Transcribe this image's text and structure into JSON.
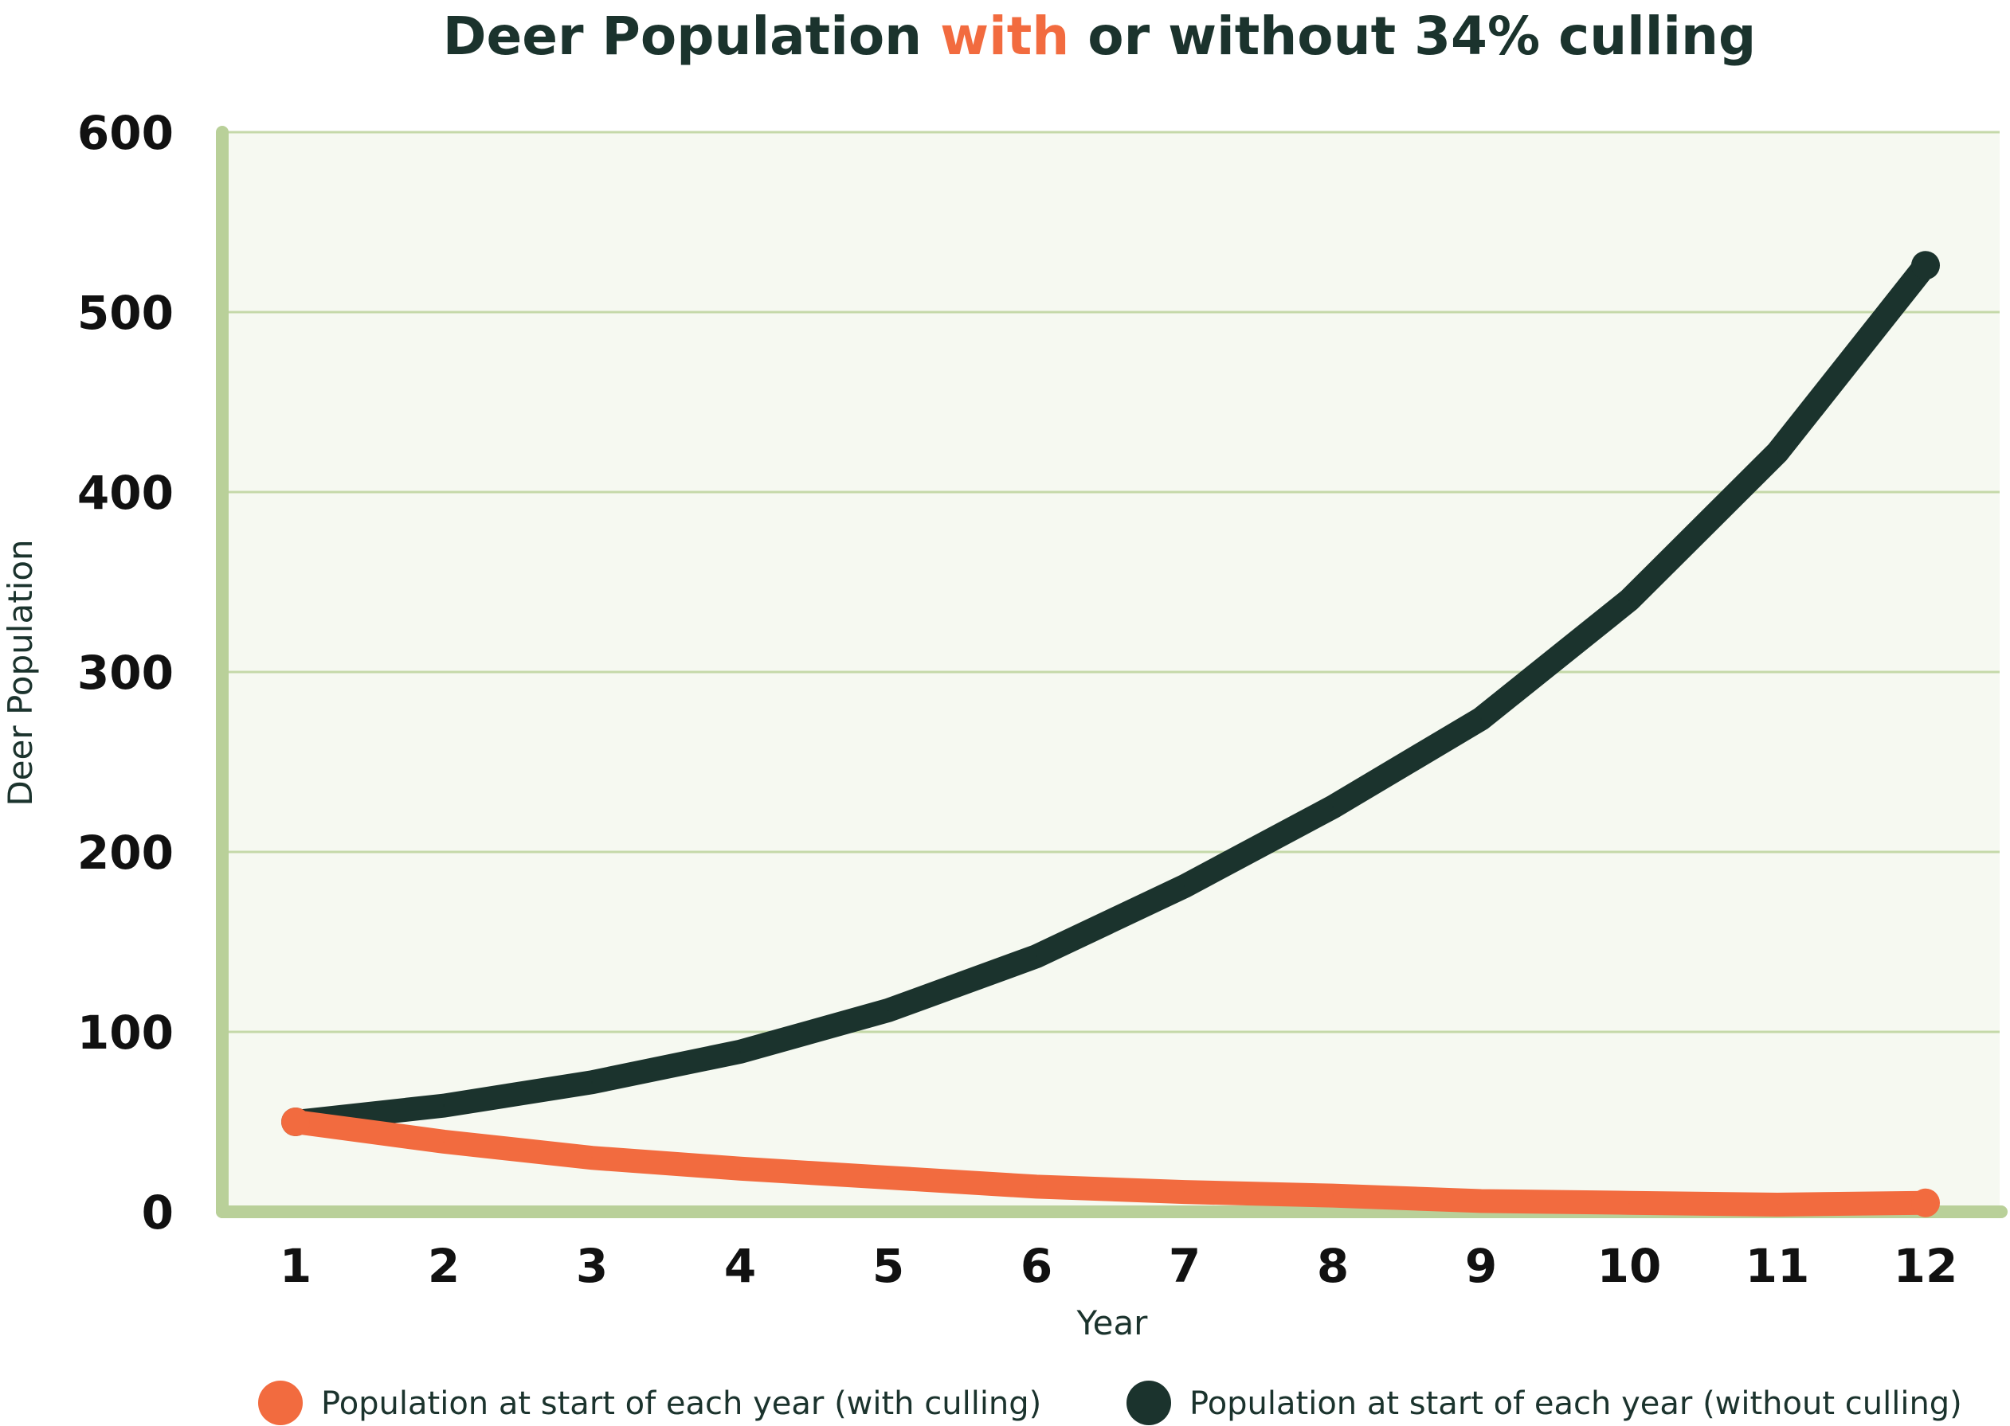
{
  "chart_data": {
    "type": "line",
    "title": {
      "before": "Deer Population ",
      "highlight": "with",
      "after": " or without 34% culling"
    },
    "xlabel": "Year",
    "ylabel": "Deer Population",
    "ylim": [
      0,
      600
    ],
    "yticks": [
      "0",
      "100",
      "200",
      "300",
      "400",
      "500",
      "600"
    ],
    "categories": [
      "1",
      "2",
      "3",
      "4",
      "5",
      "6",
      "7",
      "8",
      "9",
      "10",
      "11",
      "12"
    ],
    "grid": true,
    "legend_position": "bottom",
    "series": [
      {
        "name": "Population at start of each year (with culling)",
        "color": "#f26b3f",
        "values": [
          50,
          39,
          30,
          24,
          19,
          14,
          11,
          9,
          6,
          5,
          4,
          5
        ]
      },
      {
        "name": "Population at start of each year (without culling)",
        "color": "#1b332d",
        "values": [
          50,
          59,
          72,
          89,
          112,
          142,
          181,
          225,
          274,
          340,
          422,
          526
        ]
      }
    ],
    "colors": {
      "axis": "#b9d099",
      "plot_background": "#f6f9f1",
      "gridline": "#c5d9a9"
    }
  }
}
